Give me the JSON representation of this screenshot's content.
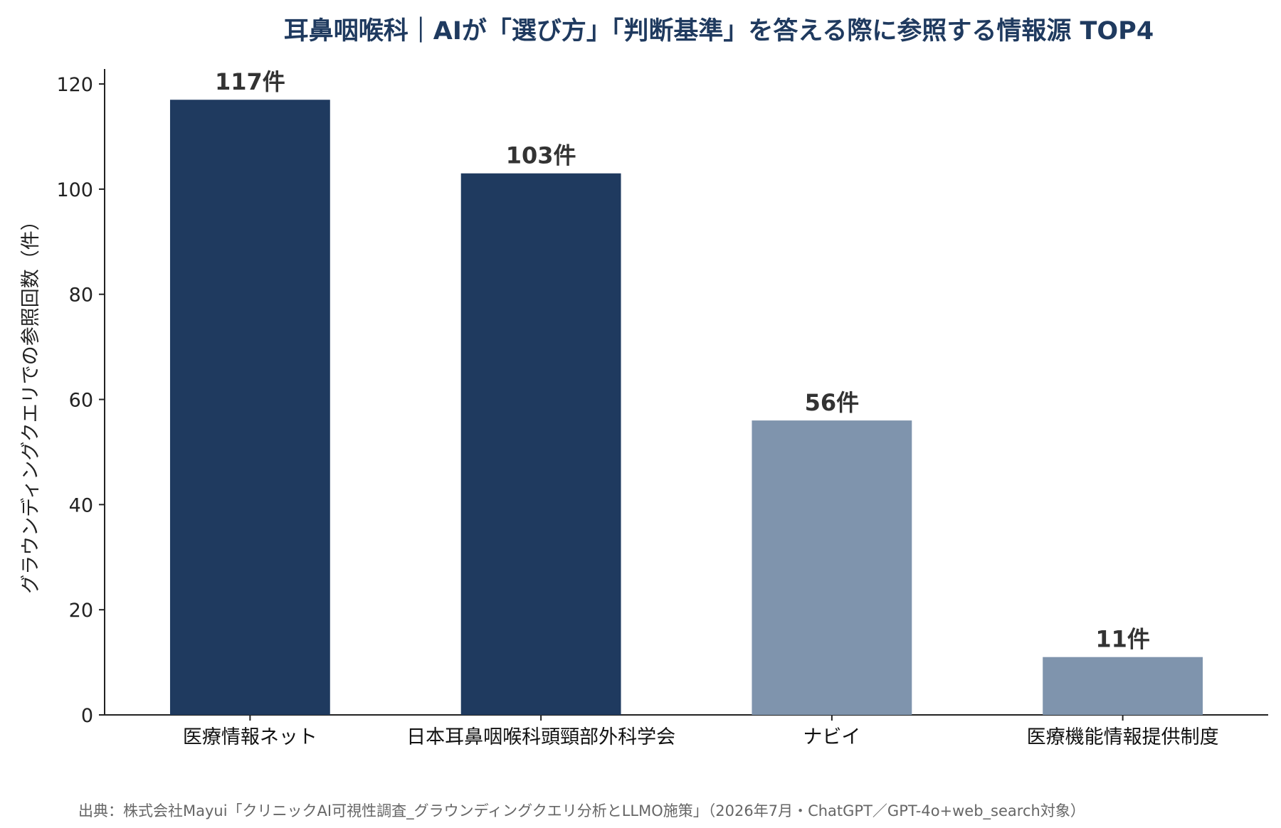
{
  "chart_data": {
    "type": "bar",
    "title": "耳鼻咽喉科｜AIが「選び方」「判断基準」を答える際に参照する情報源 TOP4",
    "xlabel": "",
    "ylabel": "グラウンディングクエリでの参照回数（件）",
    "categories": [
      "医療情報ネット",
      "日本耳鼻咽喉科頭頸部外科学会",
      "ナビイ",
      "医療機能情報提供制度"
    ],
    "values": [
      117,
      103,
      56,
      11
    ],
    "data_labels": [
      "117件",
      "103件",
      "56件",
      "11件"
    ],
    "bar_colors": [
      "#1f3a5f",
      "#1f3a5f",
      "#7f94ad",
      "#7f94ad"
    ],
    "ylim": [
      0,
      122.85
    ],
    "yticks": [
      0,
      20,
      40,
      60,
      80,
      100,
      120
    ],
    "grid": false,
    "legend": "none"
  },
  "source_note": "出典：株式会社Mayui「クリニックAI可視性調査_グラウンディングクエリ分析とLLMO施策」（2026年7月・ChatGPT／GPT-4o+web_search対象）"
}
